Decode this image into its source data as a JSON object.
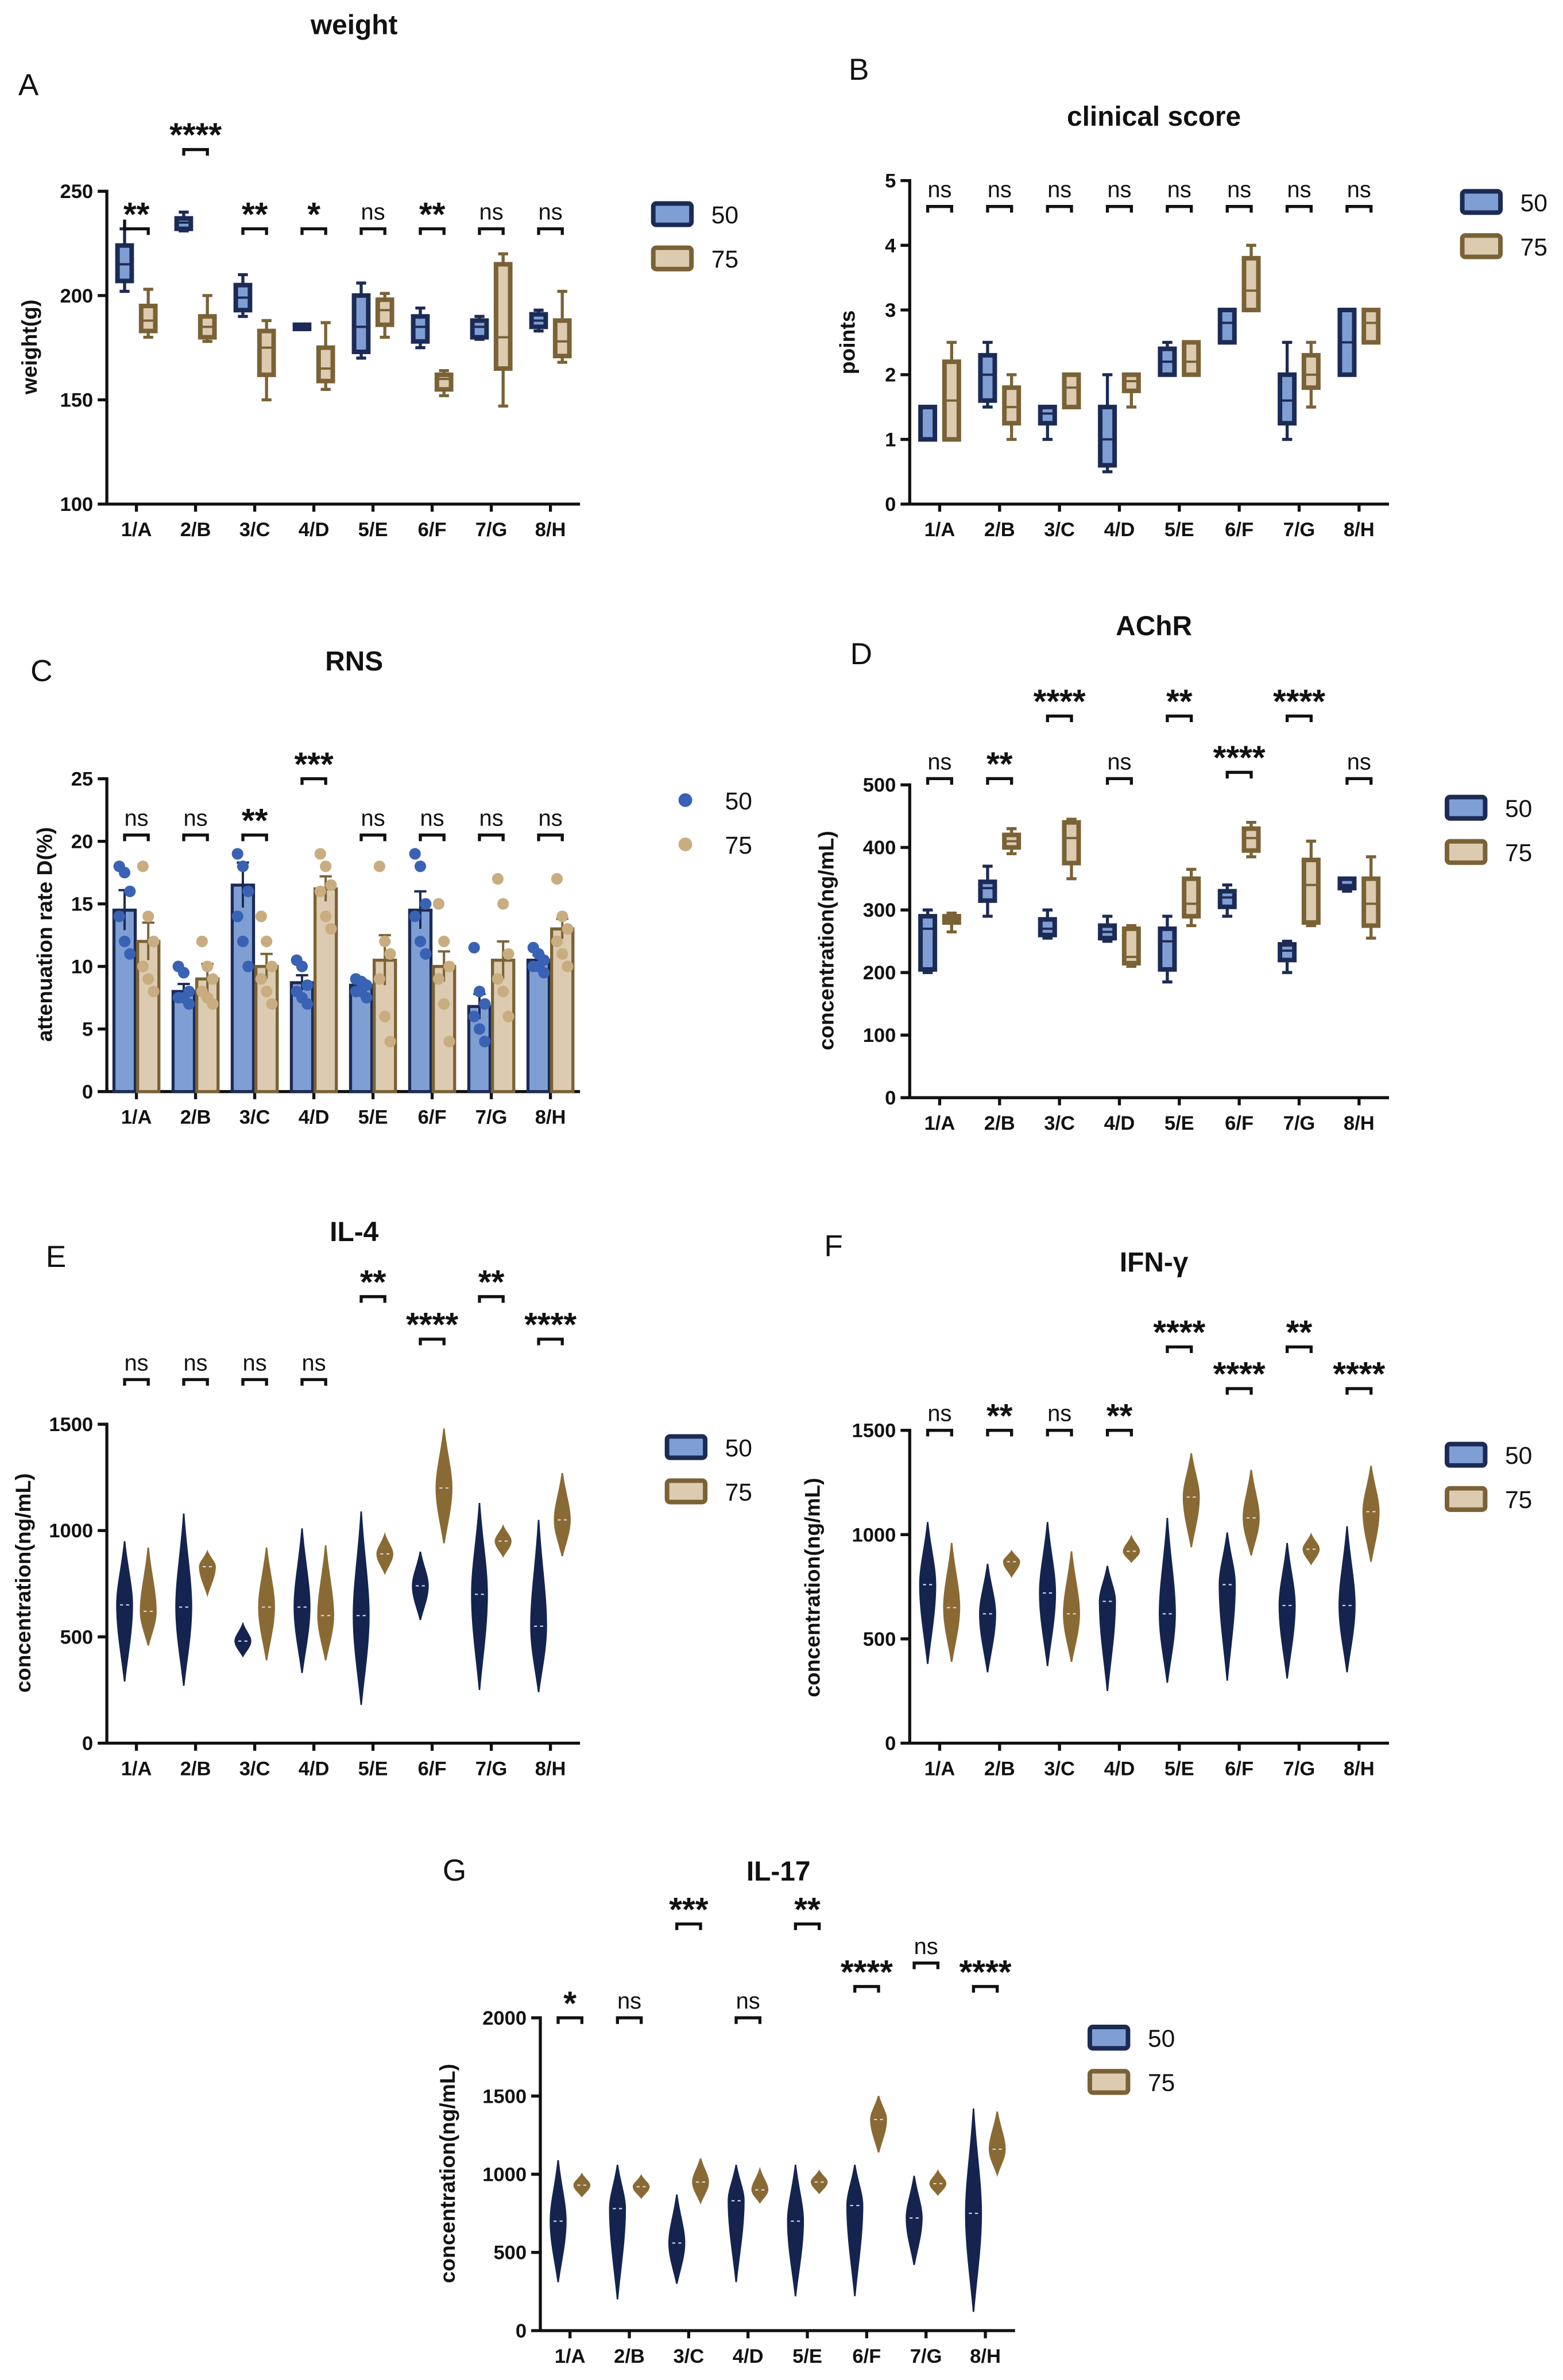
{
  "categories": [
    "1/A",
    "2/B",
    "3/C",
    "4/D",
    "5/E",
    "6/F",
    "7/G",
    "8/H"
  ],
  "series_names": [
    "50",
    "75"
  ],
  "colors": {
    "s50_fill": "#7f9fd4",
    "s50_stroke": "#1c2b55",
    "s75_fill": "#dccbb0",
    "s75_stroke": "#7a6236",
    "scatter50": "#3a62b4",
    "scatter75": "#c9ad80",
    "violin50": "#14244f",
    "violin75": "#8a6a34",
    "axis": "#111111"
  },
  "chart_data": [
    {
      "letter": "A",
      "type": "box",
      "title": "weight",
      "ylabel": "weight(g)",
      "ylim": [
        100,
        250
      ],
      "yticks": [
        100,
        150,
        200,
        250
      ],
      "series": [
        {
          "name": "50",
          "boxes": [
            [
              202,
              207,
              215,
              224,
              232
            ],
            [
              231,
              232,
              235,
              237,
              240
            ],
            [
              190,
              193,
              199,
              205,
              210
            ],
            [
              184,
              184,
              185,
              186,
              186
            ],
            [
              170,
              173,
              185,
              200,
              206
            ],
            [
              175,
              178,
              185,
              190,
              194
            ],
            [
              179,
              180,
              185,
              188,
              190
            ],
            [
              183,
              185,
              188,
              191,
              193
            ]
          ]
        },
        {
          "name": "75",
          "boxes": [
            [
              180,
              183,
              188,
              195,
              203
            ],
            [
              178,
              180,
              185,
              190,
              200
            ],
            [
              150,
              162,
              175,
              183,
              188
            ],
            [
              155,
              159,
              165,
              175,
              187
            ],
            [
              180,
              186,
              193,
              198,
              201
            ],
            [
              152,
              155,
              160,
              162,
              164
            ],
            [
              147,
              165,
              180,
              215,
              220
            ],
            [
              168,
              171,
              178,
              188,
              202
            ]
          ]
        }
      ],
      "sig": [
        "**",
        "****",
        "**",
        "*",
        "ns",
        "**",
        "ns",
        "ns"
      ],
      "bracket_y": [
        232,
        270,
        232,
        232,
        232,
        232,
        232,
        232
      ]
    },
    {
      "letter": "B",
      "type": "box",
      "title": "clinical score",
      "ylabel": "points",
      "ylim": [
        0,
        5
      ],
      "yticks": [
        0,
        1,
        2,
        3,
        4,
        5
      ],
      "series": [
        {
          "name": "50",
          "boxes": [
            [
              1,
              1,
              1,
              1.5,
              1.5
            ],
            [
              1.5,
              1.6,
              2,
              2.3,
              2.5
            ],
            [
              1,
              1.25,
              1.4,
              1.5,
              1.5
            ],
            [
              0.5,
              0.6,
              1,
              1.5,
              2
            ],
            [
              2,
              2,
              2.2,
              2.4,
              2.5
            ],
            [
              2.5,
              2.5,
              2.8,
              3,
              3
            ],
            [
              1,
              1.25,
              1.6,
              2,
              2.5
            ],
            [
              2,
              2,
              2.5,
              3,
              3
            ]
          ]
        },
        {
          "name": "75",
          "boxes": [
            [
              1,
              1,
              1.6,
              2.2,
              2.5
            ],
            [
              1,
              1.25,
              1.5,
              1.8,
              2
            ],
            [
              1.5,
              1.5,
              1.8,
              2,
              2
            ],
            [
              1.5,
              1.75,
              1.9,
              2,
              2
            ],
            [
              2,
              2,
              2.2,
              2.5,
              2.5
            ],
            [
              3,
              3,
              3.3,
              3.8,
              4
            ],
            [
              1.5,
              1.8,
              2,
              2.3,
              2.5
            ],
            [
              2.5,
              2.5,
              2.8,
              3,
              3
            ]
          ]
        }
      ],
      "sig": [
        "ns",
        "ns",
        "ns",
        "ns",
        "ns",
        "ns",
        "ns",
        "ns"
      ],
      "bracket_y": [
        4.6,
        4.6,
        4.6,
        4.6,
        4.6,
        4.6,
        4.6,
        4.6
      ]
    },
    {
      "letter": "C",
      "type": "barpoints",
      "title": "RNS",
      "ylabel": "attenuation rate D(%)",
      "ylim": [
        0,
        25
      ],
      "yticks": [
        0,
        5,
        10,
        15,
        20,
        25
      ],
      "series": [
        {
          "name": "50",
          "values": [
            14.5,
            8.0,
            16.5,
            8.7,
            8.5,
            14.5,
            6.8,
            10.5
          ],
          "err": [
            1.6,
            0.6,
            1.8,
            0.6,
            0.4,
            1.5,
            1.0,
            0.4
          ],
          "points": [
            [
              18,
              17.5,
              16,
              14,
              12,
              11
            ],
            [
              10,
              9.5,
              8,
              7.5,
              7.5,
              7
            ],
            [
              19,
              18,
              16,
              14,
              12,
              10
            ],
            [
              10.5,
              10,
              8.5,
              8,
              7.5,
              7
            ],
            [
              9,
              8.8,
              8.5,
              8,
              8,
              7.5
            ],
            [
              19,
              18,
              15,
              14,
              12,
              11
            ],
            [
              11.5,
              8,
              7,
              6,
              5,
              4
            ],
            [
              11.5,
              11,
              10.5,
              10,
              10,
              9.5
            ]
          ]
        },
        {
          "name": "75",
          "values": [
            12.0,
            9.0,
            10.0,
            16.2,
            10.5,
            10.0,
            10.5,
            13.0
          ],
          "err": [
            1.5,
            1.2,
            1.0,
            1.0,
            2.0,
            1.2,
            1.5,
            0.8
          ],
          "points": [
            [
              18,
              14,
              12,
              10,
              9,
              8
            ],
            [
              12,
              10,
              9,
              8,
              7.5,
              7
            ],
            [
              14,
              12,
              10,
              9,
              8,
              7
            ],
            [
              19,
              18,
              16.5,
              16,
              14,
              13
            ],
            [
              18,
              12,
              11,
              9,
              6,
              4
            ],
            [
              15,
              12,
              10,
              9,
              7,
              4
            ],
            [
              17,
              15,
              11,
              9,
              8,
              6
            ],
            [
              17,
              14,
              13,
              12,
              11,
              10
            ]
          ]
        }
      ],
      "sig": [
        "ns",
        "ns",
        "**",
        "***",
        "ns",
        "ns",
        "ns",
        "ns"
      ],
      "bracket_y": [
        20.5,
        20.5,
        20.5,
        25,
        20.5,
        20.5,
        20.5,
        20.5
      ]
    },
    {
      "letter": "D",
      "type": "box",
      "title": "AChR",
      "ylabel": "concentration(ng/mL)",
      "ylim": [
        0,
        500
      ],
      "yticks": [
        0,
        100,
        200,
        300,
        400,
        500
      ],
      "series": [
        {
          "name": "50",
          "boxes": [
            [
              200,
              205,
              270,
              290,
              300
            ],
            [
              290,
              315,
              335,
              345,
              370
            ],
            [
              255,
              260,
              270,
              285,
              300
            ],
            [
              250,
              255,
              265,
              275,
              290
            ],
            [
              185,
              205,
              250,
              270,
              290
            ],
            [
              290,
              305,
              320,
              330,
              340
            ],
            [
              200,
              220,
              235,
              245,
              250
            ],
            [
              330,
              335,
              340,
              350,
              350
            ]
          ]
        },
        {
          "name": "75",
          "boxes": [
            [
              265,
              280,
              285,
              290,
              295
            ],
            [
              390,
              400,
              410,
              420,
              430
            ],
            [
              350,
              375,
              415,
              440,
              445
            ],
            [
              210,
              215,
              225,
              270,
              275
            ],
            [
              275,
              290,
              310,
              350,
              365
            ],
            [
              385,
              395,
              415,
              430,
              440
            ],
            [
              275,
              280,
              340,
              380,
              410
            ],
            [
              255,
              275,
              310,
              350,
              385
            ]
          ]
        }
      ],
      "sig": [
        "ns",
        "**",
        "****",
        "ns",
        "**",
        "****",
        "****",
        "ns"
      ],
      "bracket_y": [
        510,
        510,
        610,
        510,
        610,
        520,
        610,
        510
      ]
    },
    {
      "letter": "E",
      "type": "violin",
      "title": "IL-4",
      "ylabel": "concentration(ng/mL)",
      "ylim": [
        0,
        1500
      ],
      "yticks": [
        0,
        500,
        1000,
        1500
      ],
      "series": [
        {
          "name": "50",
          "violins": [
            [
              290,
              950,
              650
            ],
            [
              270,
              1080,
              640
            ],
            [
              410,
              560,
              480
            ],
            [
              330,
              1010,
              640
            ],
            [
              180,
              1090,
              600
            ],
            [
              580,
              900,
              740
            ],
            [
              250,
              1130,
              700
            ],
            [
              240,
              1050,
              550
            ]
          ]
        },
        {
          "name": "75",
          "violins": [
            [
              460,
              920,
              620
            ],
            [
              700,
              900,
              830
            ],
            [
              390,
              920,
              640
            ],
            [
              390,
              930,
              600
            ],
            [
              800,
              980,
              890
            ],
            [
              940,
              1480,
              1200
            ],
            [
              880,
              1020,
              950
            ],
            [
              880,
              1270,
              1050
            ]
          ]
        }
      ],
      "sig": [
        "ns",
        "ns",
        "ns",
        "ns",
        "**",
        "****",
        "**",
        "****"
      ],
      "bracket_y": [
        1710,
        1710,
        1710,
        1710,
        2100,
        1900,
        2100,
        1900
      ]
    },
    {
      "letter": "F",
      "type": "violin",
      "title": "IFN-γ",
      "ylabel": "concentration(ng/mL)",
      "ylim": [
        0,
        1500
      ],
      "yticks": [
        0,
        500,
        1000,
        1500
      ],
      "series": [
        {
          "name": "50",
          "violins": [
            [
              380,
              1060,
              760
            ],
            [
              340,
              860,
              620
            ],
            [
              370,
              1060,
              720
            ],
            [
              250,
              850,
              680
            ],
            [
              290,
              1080,
              620
            ],
            [
              300,
              1010,
              760
            ],
            [
              310,
              960,
              660
            ],
            [
              340,
              1040,
              660
            ]
          ]
        },
        {
          "name": "75",
          "violins": [
            [
              390,
              960,
              650
            ],
            [
              800,
              920,
              870
            ],
            [
              390,
              920,
              620
            ],
            [
              870,
              990,
              920
            ],
            [
              940,
              1390,
              1180
            ],
            [
              900,
              1310,
              1080
            ],
            [
              860,
              1000,
              930
            ],
            [
              870,
              1330,
              1110
            ]
          ]
        }
      ],
      "sig": [
        "ns",
        "**",
        "ns",
        "**",
        "****",
        "****",
        "**",
        "****"
      ],
      "bracket_y": [
        1500,
        1500,
        1500,
        1500,
        1900,
        1700,
        1900,
        1700
      ]
    },
    {
      "letter": "G",
      "type": "violin",
      "title": "IL-17",
      "ylabel": "concentration(ng/mL)",
      "ylim": [
        0,
        2000
      ],
      "yticks": [
        0,
        500,
        1000,
        1500,
        2000
      ],
      "series": [
        {
          "name": "50",
          "violins": [
            [
              310,
              1090,
              700
            ],
            [
              200,
              1060,
              780
            ],
            [
              300,
              870,
              560
            ],
            [
              310,
              1060,
              830
            ],
            [
              220,
              1060,
              700
            ],
            [
              220,
              1060,
              800
            ],
            [
              420,
              990,
              720
            ],
            [
              120,
              1420,
              750
            ]
          ]
        },
        {
          "name": "75",
          "violins": [
            [
              860,
              1000,
              930
            ],
            [
              850,
              990,
              920
            ],
            [
              820,
              1100,
              950
            ],
            [
              820,
              1030,
              900
            ],
            [
              880,
              1020,
              950
            ],
            [
              1140,
              1500,
              1350
            ],
            [
              870,
              1020,
              940
            ],
            [
              1000,
              1400,
              1160
            ]
          ]
        }
      ],
      "sig": [
        "*",
        "ns",
        "***",
        "ns",
        "**",
        "****",
        "ns",
        "****"
      ],
      "bracket_y": [
        2000,
        2000,
        2600,
        2000,
        2600,
        2200,
        2350,
        2200
      ]
    }
  ]
}
